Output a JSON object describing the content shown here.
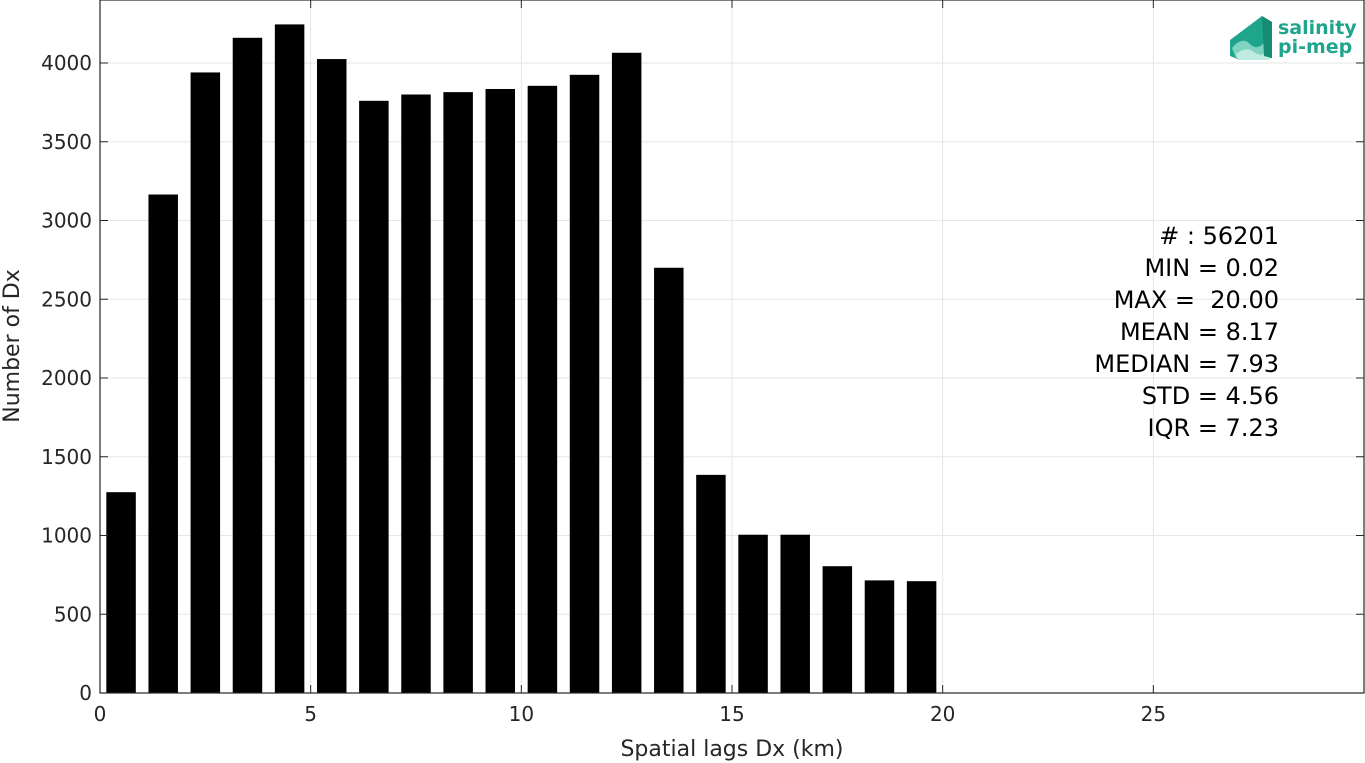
{
  "chart_data": {
    "type": "bar",
    "title": "",
    "xlabel": "Spatial lags Dx (km)",
    "ylabel": "Number of Dx",
    "xlim": [
      0,
      30
    ],
    "ylim": [
      0,
      4400
    ],
    "grid": true,
    "x_ticks": [
      0,
      5,
      10,
      15,
      20,
      25
    ],
    "y_ticks": [
      0,
      500,
      1000,
      1500,
      2000,
      2500,
      3000,
      3500,
      4000
    ],
    "bar_width": 0.7,
    "x": [
      0.5,
      1.5,
      2.5,
      3.5,
      4.5,
      5.5,
      6.5,
      7.5,
      8.5,
      9.5,
      10.5,
      11.5,
      12.5,
      13.5,
      14.5,
      15.5,
      16.5,
      17.5,
      18.5,
      19.5
    ],
    "values": [
      1275,
      3165,
      3940,
      4160,
      4245,
      4025,
      3760,
      3800,
      3815,
      3835,
      3855,
      3925,
      4065,
      2700,
      1385,
      1005,
      1005,
      805,
      715,
      710
    ],
    "bar_color": "#000000",
    "stats": [
      "# : 56201",
      "MIN = 0.02",
      "MAX =  20.00",
      "MEAN = 8.17",
      "MEDIAN = 7.93",
      "STD = 4.56",
      "IQR = 7.23"
    ]
  },
  "logo": {
    "line1": "salinity",
    "line2": "pi-mep",
    "color": "#1fa58c"
  }
}
